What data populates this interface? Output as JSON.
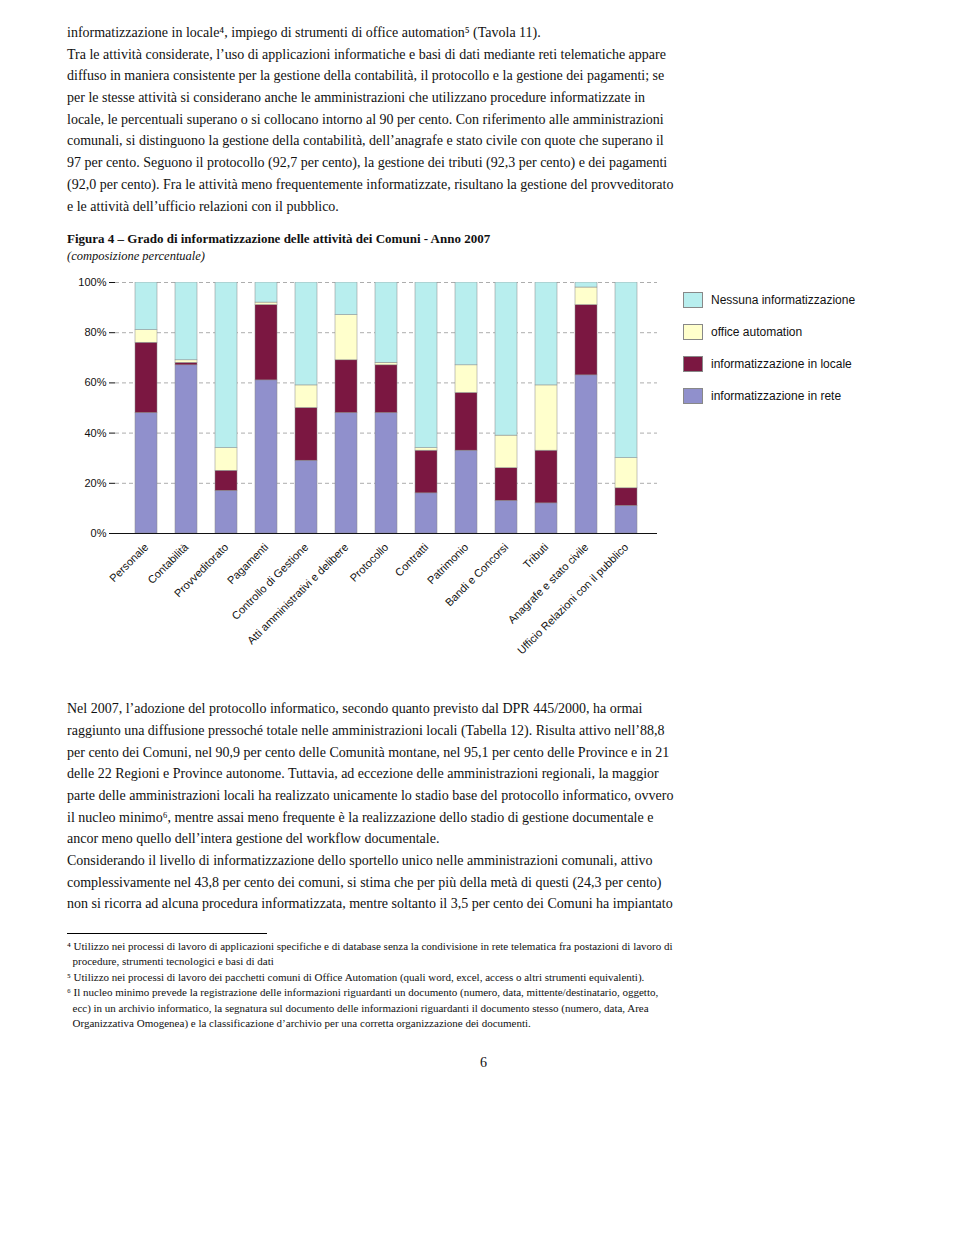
{
  "chart_data": {
    "type": "bar",
    "stacked": true,
    "title": "Figura 4 – Grado di informatizzazione delle attività dei Comuni - Anno 2007",
    "subtitle": "(composizione percentuale)",
    "categories": [
      "Personale",
      "Contabilità",
      "Provveditorato",
      "Pagamenti",
      "Controllo di Gestione",
      "Atti amministrativi e delibere",
      "Protocollo",
      "Contratti",
      "Patrimonio",
      "Bandi e Concorsi",
      "Tributi",
      "Anagrafe e stato civile",
      "Ufficio Relazioni con il pubblico"
    ],
    "series": [
      {
        "name": "informatizzazione in rete",
        "color": "#9090cc",
        "values": [
          48,
          67,
          17,
          61,
          29,
          48,
          48,
          16,
          33,
          13,
          12,
          63,
          11
        ]
      },
      {
        "name": "informatizzazione in locale",
        "color": "#7b1741",
        "values": [
          28,
          1,
          8,
          30,
          21,
          21,
          19,
          17,
          23,
          13,
          21,
          28,
          7
        ]
      },
      {
        "name": "office automation",
        "color": "#ffffcc",
        "values": [
          5,
          1,
          9,
          1,
          9,
          18,
          1,
          1,
          11,
          13,
          26,
          7,
          12
        ]
      },
      {
        "name": "Nessuna informatizzazione",
        "color": "#b8eeee",
        "values": [
          19,
          31,
          66,
          8,
          41,
          13,
          32,
          66,
          33,
          61,
          41,
          2,
          70
        ]
      }
    ],
    "ylim": [
      0,
      100
    ],
    "yticks": [
      {
        "value": 0,
        "label": "0%"
      },
      {
        "value": 20,
        "label": "20%"
      },
      {
        "value": 40,
        "label": "40%"
      },
      {
        "value": 60,
        "label": "60%"
      },
      {
        "value": 80,
        "label": "80%"
      },
      {
        "value": 100,
        "label": "100%"
      }
    ],
    "grid": true,
    "legend": "right",
    "annotations": [
      "informatizzazione in locale⁴, impiego di strumenti di ​office automation⁵ (Tavola 11).\nTra le attività considerate, l’uso di applicazioni informatiche e basi di dati mediante reti telematiche appare\ndiffuso in maniera consistente per la gestione della contabilità, il protocollo e la gestione dei pagamenti; se\nper le stesse attività si considerano anche le amministrazioni che utilizzano procedure informatizzate in\nlocale, le percentuali superano o si collocano intorno al 90 per cento. Con riferimento alle amministrazioni\ncomunali, si distinguono la gestione della contabilità, dell’anagrafe e stato civile con quote che superano il\n97 per cento. Seguono il protocollo (92,7 per cento), la gestione dei tributi (92,3 per cento) e dei pagamenti\n(92,0 per cento). Fra le attività meno frequentemente informatizzate, risultano la gestione del provveditorato\ne le attività dell’ufficio relazioni con il pubblico.",
      "Nel 2007, l’adozione del ​protocollo informatico​, secondo quanto previsto dal ​DPR 445/2000​, ha ormai\nraggiunto una diffusione pressoché totale nelle amministrazioni locali (Tabella 12). Risulta attivo nell’88,8\nper cento dei Comuni, nel 90,9 per cento delle Comunità montane, nel 95,1 per cento delle Province e in 21\ndelle 22 Regioni e Province autonome. Tuttavia, ad eccezione delle amministrazioni regionali, la maggior\nparte delle amministrazioni locali ha realizzato unicamente lo stadio base del protocollo informatico, ovvero\nil nucleo minimo⁶, mentre assai meno frequente è la realizzazione dello stadio di gestione documentale e\nancor meno quello dell’intera gestione del ​workflow​ documentale.\nConsiderando il livello di informatizzazione dello ​sportello unico​ nelle amministrazioni comunali, attivo\ncomplessivamente nel 43,8 per cento dei comuni, si stima che per più della metà di questi (24,3 per cento)\nnon si ricorra ad alcuna procedura informatizzata, mentre soltanto il 3,5 per cento dei Comuni ha impiantato",
      "⁴ Utilizzo nei processi di lavoro di applicazioni specifiche e di database senza la condivisione in rete telematica fra postazioni di lavoro di\n  procedure, strumenti tecnologici e basi di dati\n⁵ Utilizzo nei processi di lavoro dei pacchetti comuni di Office Automation (quali word, excel, access o altri strumenti equivalenti).\n⁶ Il nucleo minimo prevede la registrazione delle informazioni riguardanti un documento (numero, data, mittente/destinatario, oggetto,\n  ecc) in un archivio informatico, la segnatura sul documento delle informazioni riguardanti il documento stesso (numero, data, Area\n  Organizzativa Omogenea) e la classificazione d’archivio per una corretta organizzazione dei documenti.",
      "6"
    ]
  }
}
